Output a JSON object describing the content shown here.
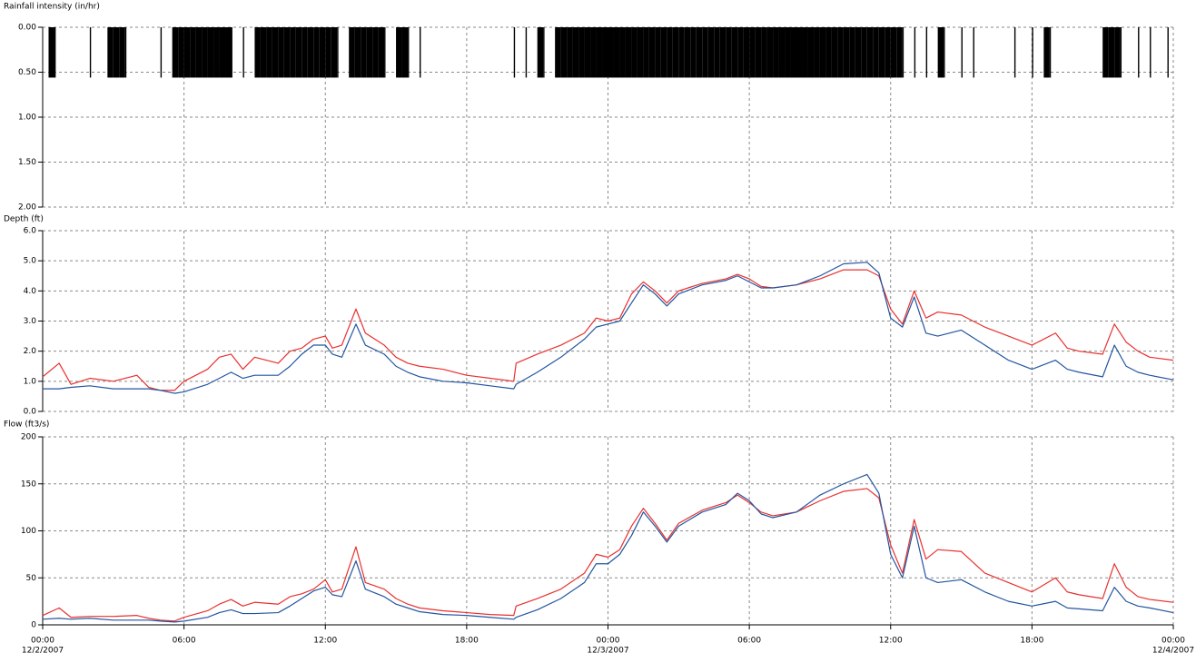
{
  "chart_data": [
    {
      "type": "bar",
      "title": "Rainfall intensity (in/hr)",
      "y_inverted": true,
      "grid": true,
      "ylim": [
        0,
        2
      ],
      "yticks": [
        {
          "value": 0,
          "label": "0.00"
        },
        {
          "value": 0.5,
          "label": "0.50"
        },
        {
          "value": 1,
          "label": "1.00"
        },
        {
          "value": 1.5,
          "label": "1.50"
        },
        {
          "value": 2,
          "label": "2.00"
        }
      ],
      "xlim": [
        0,
        48
      ],
      "color": "#000000",
      "x": [
        0,
        0.25,
        0.5,
        0.75,
        1,
        1.25,
        1.5,
        1.75,
        2,
        2.25,
        2.5,
        2.75,
        3,
        3.25,
        3.5,
        3.75,
        4,
        4.25,
        4.5,
        4.75,
        5,
        5.25,
        5.5,
        5.75,
        6,
        6.25,
        6.5,
        6.75,
        7,
        7.25,
        7.5,
        7.75,
        8,
        8.25,
        8.5,
        8.75,
        9,
        9.25,
        9.5,
        9.75,
        10,
        10.25,
        10.5,
        10.75,
        11,
        11.25,
        11.5,
        11.75,
        12,
        12.25,
        12.5,
        12.75,
        13,
        13.25,
        13.5,
        13.75,
        14,
        14.25,
        14.5,
        14.75,
        15,
        15.25,
        15.5,
        15.75,
        16,
        16.25,
        16.5,
        16.75,
        17,
        17.25,
        17.5,
        17.75,
        18,
        18.25,
        18.5,
        18.75,
        19,
        19.25,
        19.5,
        19.75,
        20,
        20.25,
        20.5,
        20.75,
        21,
        21.25,
        21.5,
        21.75,
        22,
        22.25,
        22.5,
        22.75,
        23,
        23.25,
        23.5,
        23.75,
        24,
        24.25,
        24.5,
        24.75,
        25,
        25.25,
        25.5,
        25.75,
        26,
        26.25,
        26.5,
        26.75,
        27,
        27.25,
        27.5,
        27.75,
        28,
        28.25,
        28.5,
        28.75,
        29,
        29.25,
        29.5,
        29.75,
        30,
        30.25,
        30.5,
        30.75,
        31,
        31.25,
        31.5,
        31.75,
        32,
        32.25,
        32.5,
        32.75,
        33,
        33.25,
        33.5,
        33.75,
        34,
        34.25,
        34.5,
        34.75,
        35,
        35.25,
        35.5,
        35.75,
        36,
        36.25,
        36.5,
        36.75,
        37,
        37.25,
        37.5,
        37.75,
        38,
        38.25,
        38.5,
        38.75,
        39,
        39.25,
        39.5,
        39.75,
        40,
        40.25,
        40.5,
        40.75,
        41,
        41.25,
        41.5,
        41.75,
        42,
        42.25,
        42.5,
        42.75,
        43,
        43.25,
        43.5,
        43.75,
        44,
        44.25,
        44.5,
        44.75,
        45,
        45.25,
        45.5,
        45.75,
        46,
        46.25,
        46.5,
        46.75,
        47,
        47.25,
        47.5,
        47.75
      ],
      "values": [
        0,
        0.56,
        0.56,
        0,
        0,
        0,
        0,
        0,
        0.56,
        0,
        0,
        0.56,
        0.56,
        0.56,
        0.56,
        0,
        0,
        0,
        0,
        0,
        0.56,
        0,
        0.56,
        0.56,
        0.56,
        0.56,
        0.56,
        0.56,
        0.56,
        0.56,
        0.56,
        0.56,
        0.56,
        0,
        0.56,
        0,
        0.56,
        0.56,
        0.56,
        0.56,
        0.56,
        0.56,
        0.56,
        0.56,
        0.56,
        0.56,
        0.56,
        0.56,
        0.56,
        0.56,
        0.56,
        0,
        0.56,
        0.56,
        0.56,
        0.56,
        0.56,
        0.56,
        0.56,
        0,
        0.56,
        0.56,
        0.56,
        0,
        0.56,
        0,
        0,
        0,
        0,
        0,
        0,
        0,
        0,
        0,
        0,
        0,
        0,
        0,
        0,
        0,
        0.56,
        0,
        0.56,
        0,
        0.56,
        0.56,
        0,
        0.56,
        0.56,
        0.56,
        0.56,
        0.56,
        0.56,
        0.56,
        0.56,
        0.56,
        0.56,
        0.56,
        0.56,
        0.56,
        0.56,
        0.56,
        0.56,
        0.56,
        0.56,
        0.56,
        0.56,
        0.56,
        0.56,
        0.56,
        0.56,
        0.56,
        0.56,
        0.56,
        0.56,
        0.56,
        0.56,
        0.56,
        0.56,
        0.56,
        0.56,
        0.56,
        0.56,
        0.56,
        0.56,
        0.56,
        0.56,
        0.56,
        0.56,
        0.56,
        0.56,
        0.56,
        0.56,
        0.56,
        0.56,
        0.56,
        0.56,
        0.56,
        0.56,
        0.56,
        0.56,
        0.56,
        0.56,
        0.56,
        0.56,
        0.56,
        0.56,
        0,
        0.56,
        0,
        0.56,
        0,
        0.56,
        0.56,
        0,
        0,
        0.56,
        0,
        0.56,
        0,
        0,
        0,
        0,
        0,
        0,
        0.56,
        0,
        0,
        0.56,
        0,
        0.56,
        0.56,
        0,
        0,
        0,
        0,
        0,
        0,
        0,
        0,
        0.56,
        0.56,
        0.56,
        0.56,
        0,
        0,
        0.56,
        0,
        0.56,
        0,
        0,
        0.56
      ]
    },
    {
      "type": "line",
      "title": "Depth (ft)",
      "grid": true,
      "ylim": [
        0,
        6
      ],
      "yticks": [
        {
          "value": 0,
          "label": "0.0"
        },
        {
          "value": 1,
          "label": "1.0"
        },
        {
          "value": 2,
          "label": "2.0"
        },
        {
          "value": 3,
          "label": "3.0"
        },
        {
          "value": 4,
          "label": "4.0"
        },
        {
          "value": 5,
          "label": "5.0"
        },
        {
          "value": 6,
          "label": "6.0"
        }
      ],
      "xlim": [
        0,
        48
      ],
      "x": [
        0,
        0.7,
        1.2,
        2,
        3,
        4,
        4.5,
        5,
        5.6,
        6,
        7,
        7.5,
        8,
        8.5,
        9,
        10,
        10.5,
        11,
        11.5,
        12,
        12.3,
        12.7,
        13.3,
        13.7,
        14.5,
        15,
        15.5,
        16,
        17,
        18,
        19,
        20,
        20.1,
        21,
        22,
        23,
        23.5,
        24,
        24.5,
        25,
        25.5,
        26,
        26.5,
        27,
        28,
        29,
        29.5,
        30,
        30.5,
        31,
        32,
        33,
        34,
        35,
        35.5,
        36,
        36.5,
        37,
        37.5,
        38,
        39,
        40,
        41,
        42,
        43,
        43.5,
        44,
        45,
        45.5,
        46,
        46.5,
        47,
        48
      ],
      "series": [
        {
          "color": "#e8312f",
          "values": [
            1.15,
            1.6,
            0.9,
            1.1,
            1.0,
            1.2,
            0.8,
            0.7,
            0.7,
            1.0,
            1.4,
            1.8,
            1.9,
            1.4,
            1.8,
            1.6,
            2.0,
            2.1,
            2.4,
            2.5,
            2.1,
            2.2,
            3.4,
            2.6,
            2.2,
            1.8,
            1.6,
            1.5,
            1.4,
            1.2,
            1.1,
            1.0,
            1.6,
            1.9,
            2.2,
            2.6,
            3.1,
            3.0,
            3.1,
            3.9,
            4.3,
            4.0,
            3.6,
            4.0,
            4.25,
            4.4,
            4.55,
            4.4,
            4.15,
            4.1,
            4.2,
            4.4,
            4.7,
            4.7,
            4.5,
            3.4,
            2.9,
            4.0,
            3.1,
            3.3,
            3.2,
            2.8,
            2.5,
            2.2,
            2.6,
            2.1,
            2.0,
            1.9,
            2.9,
            2.3,
            2.0,
            1.8,
            1.7
          ]
        },
        {
          "color": "#2255a0",
          "values": [
            0.75,
            0.75,
            0.8,
            0.85,
            0.75,
            0.75,
            0.75,
            0.7,
            0.6,
            0.65,
            0.9,
            1.1,
            1.3,
            1.1,
            1.2,
            1.2,
            1.5,
            1.9,
            2.2,
            2.2,
            1.9,
            1.8,
            2.9,
            2.2,
            1.9,
            1.5,
            1.3,
            1.15,
            1.0,
            0.95,
            0.85,
            0.75,
            0.9,
            1.3,
            1.8,
            2.4,
            2.8,
            2.9,
            3.0,
            3.6,
            4.2,
            3.9,
            3.5,
            3.9,
            4.2,
            4.35,
            4.5,
            4.3,
            4.1,
            4.1,
            4.2,
            4.5,
            4.9,
            4.95,
            4.6,
            3.1,
            2.8,
            3.8,
            2.6,
            2.5,
            2.7,
            2.2,
            1.7,
            1.4,
            1.7,
            1.4,
            1.3,
            1.15,
            2.2,
            1.5,
            1.3,
            1.2,
            1.05
          ]
        }
      ]
    },
    {
      "type": "line",
      "title": "Flow (ft3/s)",
      "grid": true,
      "ylim": [
        0,
        200
      ],
      "yticks": [
        0,
        50,
        100,
        150,
        200
      ],
      "xlim": [
        0,
        48
      ],
      "xticks": [
        {
          "value": 0,
          "label": "00:00"
        },
        {
          "value": 6,
          "label": "06:00"
        },
        {
          "value": 12,
          "label": "12:00"
        },
        {
          "value": 18,
          "label": "18:00"
        },
        {
          "value": 24,
          "label": "00:00"
        },
        {
          "value": 30,
          "label": "06:00"
        },
        {
          "value": 36,
          "label": "12:00"
        },
        {
          "value": 42,
          "label": "18:00"
        },
        {
          "value": 48,
          "label": "00:00"
        }
      ],
      "xtick_dates": [
        {
          "value": 0,
          "label": "12/2/2007"
        },
        {
          "value": 24,
          "label": "12/3/2007"
        },
        {
          "value": 48,
          "label": "12/4/2007"
        }
      ],
      "x": [
        0,
        0.7,
        1.2,
        2,
        3,
        4,
        4.5,
        5,
        5.6,
        6,
        7,
        7.5,
        8,
        8.5,
        9,
        10,
        10.5,
        11,
        11.5,
        12,
        12.3,
        12.7,
        13.3,
        13.7,
        14.5,
        15,
        15.5,
        16,
        17,
        18,
        19,
        20,
        20.1,
        21,
        22,
        23,
        23.5,
        24,
        24.5,
        25,
        25.5,
        26,
        26.5,
        27,
        28,
        29,
        29.5,
        30,
        30.5,
        31,
        32,
        33,
        34,
        35,
        35.5,
        36,
        36.5,
        37,
        37.5,
        38,
        39,
        40,
        41,
        42,
        43,
        43.5,
        44,
        45,
        45.5,
        46,
        46.5,
        47,
        48
      ],
      "series": [
        {
          "color": "#e8312f",
          "values": [
            10,
            18,
            8,
            9,
            9,
            10,
            7,
            5,
            4,
            8,
            15,
            22,
            27,
            20,
            24,
            22,
            30,
            33,
            38,
            48,
            35,
            38,
            83,
            45,
            38,
            28,
            22,
            18,
            15,
            13,
            11,
            10,
            20,
            28,
            38,
            55,
            75,
            72,
            80,
            105,
            124,
            108,
            90,
            108,
            122,
            130,
            138,
            130,
            120,
            116,
            120,
            132,
            142,
            145,
            135,
            85,
            55,
            112,
            70,
            80,
            78,
            55,
            45,
            35,
            50,
            35,
            32,
            28,
            65,
            40,
            30,
            27,
            24
          ]
        },
        {
          "color": "#2255a0",
          "values": [
            6,
            7,
            6,
            7,
            5,
            5,
            5,
            4,
            3,
            4,
            8,
            13,
            16,
            12,
            12,
            13,
            20,
            28,
            36,
            40,
            32,
            30,
            68,
            38,
            30,
            22,
            18,
            14,
            11,
            10,
            8,
            6,
            8,
            16,
            28,
            45,
            65,
            65,
            75,
            95,
            120,
            105,
            88,
            105,
            120,
            128,
            140,
            132,
            118,
            114,
            120,
            138,
            150,
            160,
            140,
            75,
            50,
            105,
            50,
            45,
            48,
            35,
            25,
            20,
            25,
            18,
            17,
            15,
            40,
            25,
            20,
            18,
            13
          ]
        }
      ]
    }
  ]
}
